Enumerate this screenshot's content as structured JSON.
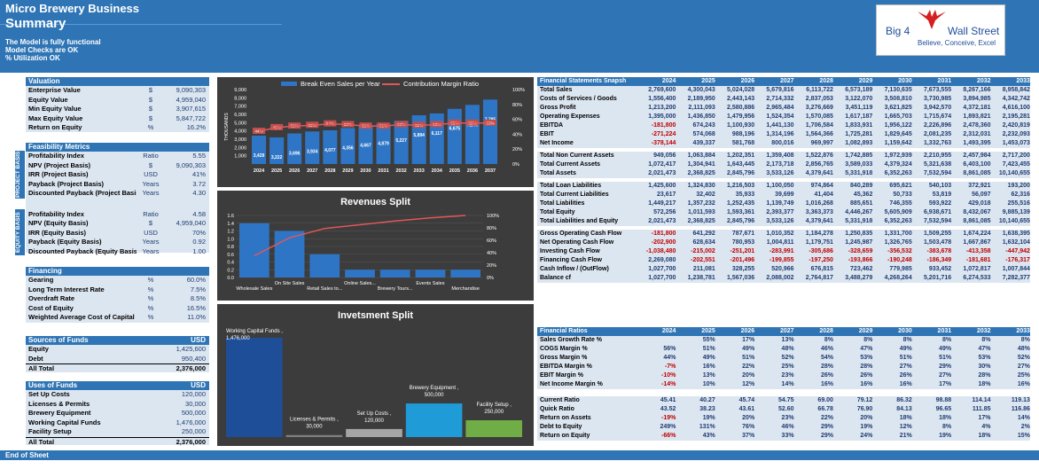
{
  "header": {
    "company": "Micro Brewery Business",
    "section": "Summary",
    "status_lines": [
      "The Model is fully functional",
      "Model Checks are OK",
      "% Utilization OK"
    ]
  },
  "logo": {
    "brand": "Big 4",
    "brand2": "Wall Street",
    "tagline": "Believe, Conceive, Excel"
  },
  "valuation": {
    "title": "Valuation",
    "rows": [
      {
        "label": "Enterprise Value",
        "unit": "$",
        "value": "9,090,303"
      },
      {
        "label": "Equity Value",
        "unit": "$",
        "value": "4,959,040"
      },
      {
        "label": "Min Equity Value",
        "unit": "$",
        "value": "3,907,615"
      },
      {
        "label": "Max Equity Value",
        "unit": "$",
        "value": "5,847,722"
      },
      {
        "label": "Return on Equity",
        "unit": "%",
        "value": "16.2%"
      }
    ]
  },
  "feasibility": {
    "title": "Feasibility Metrics",
    "project_tab": "PROJECT BASIS",
    "equity_tab": "EQUITY BASIS",
    "project_rows": [
      {
        "label": "Profitability Index",
        "unit": "Ratio",
        "value": "5.55"
      },
      {
        "label": "NPV (Project Basis)",
        "unit": "$",
        "value": "9,090,303"
      },
      {
        "label": "IRR (Project Basis)",
        "unit": "USD",
        "value": "41%"
      },
      {
        "label": "Payback (Project Basis)",
        "unit": "Years",
        "value": "3.72"
      },
      {
        "label": "Discounted Payback (Project Basis)",
        "unit": "Years",
        "value": "4.30"
      }
    ],
    "equity_rows": [
      {
        "label": "Profitability Index",
        "unit": "Ratio",
        "value": "4.58"
      },
      {
        "label": "NPV (Equity Basis)",
        "unit": "$",
        "value": "4,959,040"
      },
      {
        "label": "IRR (Equity Basis)",
        "unit": "USD",
        "value": "70%"
      },
      {
        "label": "Payback (Equity Basis)",
        "unit": "Years",
        "value": "0.92"
      },
      {
        "label": "Discounted Payback (Equity Basis)",
        "unit": "Years",
        "value": "1.00"
      }
    ]
  },
  "financing": {
    "title": "Financing",
    "rows": [
      {
        "label": "Gearing",
        "unit": "%",
        "value": "60.0%"
      },
      {
        "label": "Long Term Interest Rate",
        "unit": "%",
        "value": "7.5%"
      },
      {
        "label": "Overdraft Rate",
        "unit": "%",
        "value": "8.5%"
      },
      {
        "label": "Cost of Equity",
        "unit": "%",
        "value": "16.5%"
      },
      {
        "label": "Weighted Average Cost of Capital",
        "unit": "%",
        "value": "11.0%"
      }
    ]
  },
  "sources": {
    "title": "Sources of Funds",
    "unit": "USD",
    "rows": [
      {
        "label": "Equity",
        "value": "1,425,600"
      },
      {
        "label": "Debt",
        "value": "950,400"
      }
    ],
    "total_label": "All Total",
    "total": "2,376,000"
  },
  "uses": {
    "title": "Uses of Funds",
    "unit": "USD",
    "rows": [
      {
        "label": "Set Up Costs",
        "value": "120,000"
      },
      {
        "label": "Licenses & Permits",
        "value": "30,000"
      },
      {
        "label": "Brewery Equipment",
        "value": "500,000"
      },
      {
        "label": "Working Capital Funds",
        "value": "1,476,000"
      },
      {
        "label": "Facility Setup",
        "value": "250,000"
      }
    ],
    "total_label": "All Total",
    "total": "2,376,000"
  },
  "chart_data": [
    {
      "type": "bar",
      "title": "",
      "ylabel": "THOUSANDS",
      "categories": [
        "2024",
        "2025",
        "2026",
        "2027",
        "2028",
        "2029",
        "2030",
        "2031",
        "2032",
        "2033",
        "2034",
        "2035",
        "2036",
        "2037"
      ],
      "series": [
        {
          "name": "Break Even Sales per Year",
          "values": [
            3429,
            3222,
            3696,
            3934,
            4077,
            4356,
            4667,
            4879,
            5227,
            5894,
            6117,
            6675,
            7146,
            7785
          ]
        },
        {
          "name": "Contribution Margin Ratio",
          "values": [
            44,
            49,
            51,
            52,
            54,
            53,
            51,
            51,
            53,
            52,
            53,
            55,
            55,
            55
          ]
        }
      ],
      "ylim": [
        0,
        9000
      ],
      "y2lim": [
        0,
        100
      ],
      "yticks": [
        "1,000",
        "2,000",
        "3,000",
        "4,000",
        "5,000",
        "6,000",
        "7,000",
        "8,000",
        "9,000"
      ],
      "y2ticks": [
        "0%",
        "20%",
        "40%",
        "60%",
        "80%",
        "100%"
      ],
      "legend": "top"
    },
    {
      "type": "bar",
      "title": "Revenues Split",
      "categories": [
        "Wholesale Sales",
        "On Site Sales",
        "Retail Sales to...",
        "Online Sales...",
        "Brewery Tours...",
        "Events Sales",
        "Merchandise"
      ],
      "series": [
        {
          "name": "Revenue",
          "values": [
            1.4,
            1.2,
            0.6,
            0.2,
            0.2,
            0.2,
            0.2
          ]
        },
        {
          "name": "Cumulative %",
          "values": [
            35,
            64,
            79,
            85,
            91,
            96,
            100
          ]
        }
      ],
      "ylim": [
        0,
        1.6
      ],
      "y2lim": [
        0,
        100
      ],
      "yticks": [
        "0.0",
        "0.2",
        "0.4",
        "0.6",
        "0.8",
        "1.0",
        "1.2",
        "1.4",
        "1.6"
      ],
      "y2ticks": [
        "0%",
        "20%",
        "40%",
        "60%",
        "80%",
        "100%"
      ]
    },
    {
      "type": "bar",
      "title": "Invetsment Split",
      "categories": [
        "Working Capital Funds",
        "Licenses & Permits",
        "Set Up Costs",
        "Brewery Equipment",
        "Facility Setup"
      ],
      "values": [
        1476000,
        30000,
        120000,
        500000,
        250000
      ],
      "labels": [
        "Working Capital Funds , 1,476,000",
        "Licenses & Permits , 30,000",
        "Set Up Costs , 120,000",
        "Brewery Equipment , 500,000",
        "Facility Setup , 250,000"
      ],
      "colors": [
        "#1f4e99",
        "#7f7f7f",
        "#a5a5a5",
        "#1f9bd7",
        "#70ad47"
      ]
    }
  ],
  "fin_years": [
    "2024",
    "2025",
    "2026",
    "2027",
    "2028",
    "2029",
    "2030",
    "2031",
    "2032",
    "2033"
  ],
  "fs_title": "Financial Statements Snapsh",
  "fs_blocks": [
    [
      {
        "label": "Total Sales",
        "v": [
          "2,769,600",
          "4,300,043",
          "5,024,028",
          "5,679,816",
          "6,113,722",
          "6,573,189",
          "7,130,635",
          "7,673,555",
          "8,267,166",
          "8,958,842"
        ]
      },
      {
        "label": "Costs of Services / Goods",
        "v": [
          "1,556,400",
          "2,189,950",
          "2,443,143",
          "2,714,332",
          "2,837,053",
          "3,122,070",
          "3,508,810",
          "3,730,985",
          "3,894,985",
          "4,342,742"
        ]
      },
      {
        "label": "Gross Profit",
        "v": [
          "1,213,200",
          "2,111,093",
          "2,580,886",
          "2,965,484",
          "3,276,669",
          "3,451,119",
          "3,621,825",
          "3,942,570",
          "4,372,181",
          "4,616,100"
        ]
      },
      {
        "label": "Operating Expenses",
        "v": [
          "1,395,000",
          "1,436,850",
          "1,479,956",
          "1,524,354",
          "1,570,085",
          "1,617,187",
          "1,665,703",
          "1,715,674",
          "1,893,821",
          "2,195,281"
        ]
      },
      {
        "label": "EBITDA",
        "v": [
          "-181,800",
          "674,243",
          "1,100,930",
          "1,441,130",
          "1,706,584",
          "1,833,931",
          "1,956,122",
          "2,226,896",
          "2,478,360",
          "2,420,819"
        ]
      },
      {
        "label": "EBIT",
        "v": [
          "-271,224",
          "574,068",
          "988,196",
          "1,314,196",
          "1,564,366",
          "1,725,281",
          "1,829,645",
          "2,081,235",
          "2,312,031",
          "2,232,093"
        ]
      },
      {
        "label": "Net Income",
        "v": [
          "-378,144",
          "439,337",
          "581,768",
          "800,016",
          "969,997",
          "1,082,893",
          "1,159,642",
          "1,332,763",
          "1,493,395",
          "1,453,073"
        ]
      }
    ],
    [
      {
        "label": "Total Non Current Assets",
        "v": [
          "949,056",
          "1,063,884",
          "1,202,351",
          "1,359,408",
          "1,522,876",
          "1,742,885",
          "1,972,939",
          "2,210,955",
          "2,457,984",
          "2,717,200"
        ]
      },
      {
        "label": "Total Current Assets",
        "v": [
          "1,072,417",
          "1,304,941",
          "1,643,445",
          "2,173,718",
          "2,856,765",
          "3,589,033",
          "4,379,324",
          "5,321,638",
          "6,403,100",
          "7,423,455"
        ]
      },
      {
        "label": "Total Assets",
        "v": [
          "2,021,473",
          "2,368,825",
          "2,845,796",
          "3,533,126",
          "4,379,641",
          "5,331,918",
          "6,352,263",
          "7,532,594",
          "8,861,085",
          "10,140,655"
        ]
      }
    ],
    [
      {
        "label": "Total Loan Liabilities",
        "v": [
          "1,425,600",
          "1,324,830",
          "1,216,503",
          "1,100,050",
          "974,864",
          "840,289",
          "695,621",
          "540,103",
          "372,921",
          "193,200"
        ]
      },
      {
        "label": "Total Current Liabilities",
        "v": [
          "23,617",
          "32,402",
          "35,933",
          "39,699",
          "41,404",
          "45,362",
          "50,733",
          "53,819",
          "56,097",
          "62,316"
        ]
      },
      {
        "label": "Total Liabilities",
        "v": [
          "1,449,217",
          "1,357,232",
          "1,252,435",
          "1,139,749",
          "1,016,268",
          "885,651",
          "746,355",
          "593,922",
          "429,018",
          "255,516"
        ]
      },
      {
        "label": "Total Equity",
        "v": [
          "572,256",
          "1,011,593",
          "1,593,361",
          "2,393,377",
          "3,363,373",
          "4,446,267",
          "5,605,909",
          "6,938,671",
          "8,432,067",
          "9,885,139"
        ]
      },
      {
        "label": "Total Liabilities and Equity",
        "v": [
          "2,021,473",
          "2,368,825",
          "2,845,796",
          "3,533,126",
          "4,379,641",
          "5,331,918",
          "6,352,263",
          "7,532,594",
          "8,861,085",
          "10,140,655"
        ]
      }
    ],
    [
      {
        "label": "Gross Operating Cash Flow",
        "v": [
          "-181,800",
          "641,292",
          "787,671",
          "1,010,352",
          "1,184,278",
          "1,250,835",
          "1,331,700",
          "1,509,255",
          "1,674,224",
          "1,638,395"
        ]
      },
      {
        "label": "Net Operating Cash Flow",
        "v": [
          "-202,900",
          "628,634",
          "780,953",
          "1,004,811",
          "1,179,751",
          "1,245,987",
          "1,326,765",
          "1,503,478",
          "1,667,867",
          "1,632,104"
        ]
      },
      {
        "label": "Investing Cash Flow",
        "v": [
          "-1,038,480",
          "-215,002",
          "-251,201",
          "-283,991",
          "-305,686",
          "-328,659",
          "-356,532",
          "-383,678",
          "-413,358",
          "-447,942"
        ]
      },
      {
        "label": "Financing Cash Flow",
        "v": [
          "2,269,080",
          "-202,551",
          "-201,496",
          "-199,855",
          "-197,250",
          "-193,866",
          "-190,248",
          "-186,349",
          "-181,681",
          "-176,317"
        ]
      },
      {
        "label": "Cash Inflow / (OutFlow)",
        "v": [
          "1,027,700",
          "211,081",
          "328,255",
          "520,966",
          "676,815",
          "723,462",
          "779,985",
          "933,452",
          "1,072,817",
          "1,007,844"
        ]
      },
      {
        "label": "Balance cf",
        "v": [
          "1,027,700",
          "1,238,781",
          "1,567,036",
          "2,088,002",
          "2,764,817",
          "3,488,279",
          "4,268,264",
          "5,201,716",
          "6,274,533",
          "7,282,377"
        ]
      }
    ]
  ],
  "ratios_title": "Financial Ratios",
  "ratio_blocks": [
    [
      {
        "label": "Sales Growth Rate %",
        "v": [
          "",
          "55%",
          "17%",
          "13%",
          "8%",
          "8%",
          "8%",
          "8%",
          "8%",
          "8%"
        ]
      },
      {
        "label": "COGS Margin %",
        "v": [
          "56%",
          "51%",
          "49%",
          "48%",
          "46%",
          "47%",
          "49%",
          "49%",
          "47%",
          "48%"
        ]
      },
      {
        "label": "Gross Margin %",
        "v": [
          "44%",
          "49%",
          "51%",
          "52%",
          "54%",
          "53%",
          "51%",
          "51%",
          "53%",
          "52%"
        ]
      },
      {
        "label": "EBITDA Margin %",
        "v": [
          "-7%",
          "16%",
          "22%",
          "25%",
          "28%",
          "28%",
          "27%",
          "29%",
          "30%",
          "27%"
        ]
      },
      {
        "label": "EBIT Margin %",
        "v": [
          "-10%",
          "13%",
          "20%",
          "23%",
          "26%",
          "26%",
          "26%",
          "27%",
          "28%",
          "25%"
        ]
      },
      {
        "label": "Net Income Margin %",
        "v": [
          "-14%",
          "10%",
          "12%",
          "14%",
          "16%",
          "16%",
          "16%",
          "17%",
          "18%",
          "16%"
        ]
      }
    ],
    [
      {
        "label": "Current Ratio",
        "v": [
          "45.41",
          "40.27",
          "45.74",
          "54.75",
          "69.00",
          "79.12",
          "86.32",
          "98.88",
          "114.14",
          "119.13"
        ]
      },
      {
        "label": "Quick Ratio",
        "v": [
          "43.52",
          "38.23",
          "43.61",
          "52.60",
          "66.78",
          "76.90",
          "84.13",
          "96.65",
          "111.85",
          "116.86"
        ]
      },
      {
        "label": "Return on Assets",
        "v": [
          "-19%",
          "19%",
          "20%",
          "23%",
          "22%",
          "20%",
          "18%",
          "18%",
          "17%",
          "14%"
        ]
      },
      {
        "label": "Debt to Equity",
        "v": [
          "249%",
          "131%",
          "76%",
          "46%",
          "29%",
          "19%",
          "12%",
          "8%",
          "4%",
          "2%"
        ]
      },
      {
        "label": "Return on Equity",
        "v": [
          "-66%",
          "43%",
          "37%",
          "33%",
          "29%",
          "24%",
          "21%",
          "19%",
          "18%",
          "15%"
        ]
      }
    ]
  ],
  "footer": "End of Sheet",
  "colors": {
    "header": "#2f75b5",
    "panel": "#dce6f1",
    "chart_bg": "#3c3c3c",
    "bar": "#2e75c6",
    "line": "#e15759"
  }
}
